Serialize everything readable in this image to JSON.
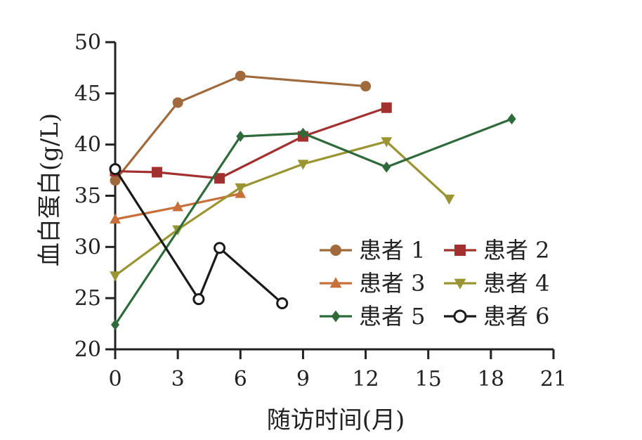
{
  "chart_data": {
    "type": "line",
    "xlabel": "随访时间(月)",
    "ylabel": "血白蛋白(g/L)",
    "xlim": [
      0,
      21
    ],
    "ylim": [
      20,
      50
    ],
    "xticks": [
      0,
      3,
      6,
      9,
      12,
      15,
      18,
      21
    ],
    "yticks": [
      20,
      25,
      30,
      35,
      40,
      45,
      50
    ],
    "grid": false,
    "legend_position": "bottom-right",
    "series": [
      {
        "name": "患者 1",
        "color": "#a06a3c",
        "marker": "circle",
        "x": [
          0,
          3,
          6,
          12
        ],
        "y": [
          36.5,
          44.1,
          46.7,
          45.7
        ]
      },
      {
        "name": "患者 2",
        "color": "#a1302e",
        "marker": "square",
        "x": [
          0,
          2,
          5,
          9,
          13
        ],
        "y": [
          37.4,
          37.3,
          36.7,
          40.8,
          43.6
        ]
      },
      {
        "name": "患者 3",
        "color": "#c8703a",
        "marker": "triangle-up",
        "x": [
          0,
          3,
          6
        ],
        "y": [
          32.7,
          33.9,
          35.2
        ]
      },
      {
        "name": "患者 4",
        "color": "#9a9432",
        "marker": "triangle-down",
        "x": [
          0,
          3,
          6,
          9,
          13,
          16
        ],
        "y": [
          27.2,
          31.7,
          35.8,
          38.1,
          40.3,
          34.7
        ]
      },
      {
        "name": "患者 5",
        "color": "#2f6a3a",
        "marker": "diamond",
        "x": [
          0,
          6,
          9,
          13,
          19
        ],
        "y": [
          22.4,
          40.8,
          41.1,
          37.8,
          42.5
        ]
      },
      {
        "name": "患者 6",
        "color": "#1a1a1a",
        "marker": "open-circle",
        "x": [
          0,
          4,
          5,
          8
        ],
        "y": [
          37.6,
          24.9,
          29.9,
          24.5
        ]
      }
    ]
  }
}
